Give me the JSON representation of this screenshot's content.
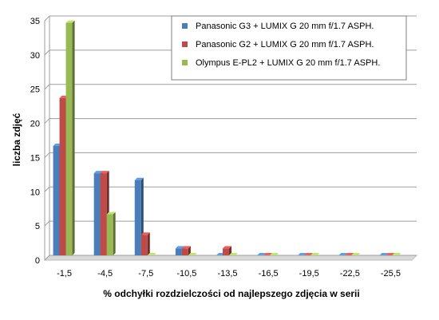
{
  "chart_data": {
    "type": "bar",
    "xlabel": "% odchyłki  rozdzielczości  od najlepszego  zdjęcia  w serii",
    "ylabel": "liczba zdjęć",
    "ylim": [
      0,
      35
    ],
    "yticks": [
      0,
      5,
      10,
      15,
      20,
      25,
      30,
      35
    ],
    "grid": "horizontal",
    "legend_position": "top-right",
    "categories": [
      "-1,5",
      "-4,5",
      "-7,5",
      "-10,5",
      "-13,5",
      "-16,5",
      "-19,5",
      "-22,5",
      "-25,5"
    ],
    "series": [
      {
        "name": "Panasonic G3 + LUMIX G 20 mm f/1.7 ASPH.",
        "color": "#4a7ebb",
        "values": [
          16,
          12,
          11,
          1,
          0,
          0,
          0,
          0,
          0
        ]
      },
      {
        "name": "Panasonic G2 + LUMIX G 20 mm f/1.7 ASPH.",
        "color": "#be4b48",
        "values": [
          23,
          12,
          3,
          1,
          1,
          0,
          0,
          0,
          0
        ]
      },
      {
        "name": "Olympus E-PL2 + LUMIX G 20 mm f/1.7 ASPH.",
        "color": "#98b954",
        "values": [
          34,
          6,
          0,
          0,
          0,
          0,
          0,
          0,
          0
        ]
      }
    ]
  }
}
